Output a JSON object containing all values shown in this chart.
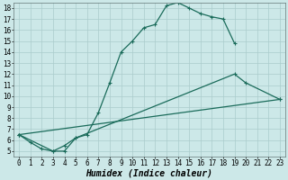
{
  "xlabel": "Humidex (Indice chaleur)",
  "bg_color": "#cce8e8",
  "grid_color": "#aacccc",
  "line_color": "#1a6b5a",
  "xlim": [
    -0.5,
    23.5
  ],
  "ylim": [
    4.5,
    18.5
  ],
  "xticks": [
    0,
    1,
    2,
    3,
    4,
    5,
    6,
    7,
    8,
    9,
    10,
    11,
    12,
    13,
    14,
    15,
    16,
    17,
    18,
    19,
    20,
    21,
    22,
    23
  ],
  "yticks": [
    5,
    6,
    7,
    8,
    9,
    10,
    11,
    12,
    13,
    14,
    15,
    16,
    17,
    18
  ],
  "s1x": [
    0,
    1,
    2,
    3,
    4,
    5,
    6,
    7,
    8,
    9,
    10,
    11,
    12,
    13,
    14,
    15,
    16,
    17,
    18,
    19
  ],
  "s1y": [
    6.5,
    5.8,
    5.2,
    5.0,
    5.0,
    6.2,
    6.5,
    8.5,
    11.2,
    14.0,
    15.0,
    16.2,
    16.5,
    18.2,
    18.5,
    18.0,
    17.5,
    17.2,
    17.0,
    14.8
  ],
  "s2x": [
    0,
    3,
    4,
    5,
    19,
    20,
    23
  ],
  "s2y": [
    6.5,
    5.0,
    5.5,
    6.2,
    12.0,
    11.2,
    9.7
  ],
  "s3x": [
    0,
    23
  ],
  "s3y": [
    6.5,
    9.7
  ],
  "tick_fontsize": 5.5,
  "xlabel_fontsize": 7
}
